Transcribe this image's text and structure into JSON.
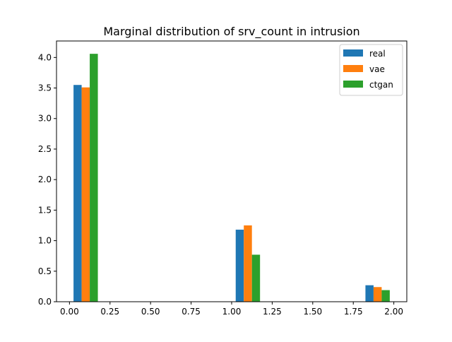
{
  "chart_data": {
    "type": "bar",
    "title": "Marginal distribution of srv_count in intrusion",
    "xlabel": "",
    "ylabel": "",
    "xlim": [
      -0.08,
      2.08
    ],
    "ylim": [
      0,
      4.27
    ],
    "x_ticks": [
      "0.00",
      "0.25",
      "0.50",
      "0.75",
      "1.00",
      "1.25",
      "1.50",
      "1.75",
      "2.00"
    ],
    "y_ticks": [
      "0.0",
      "0.5",
      "1.0",
      "1.5",
      "2.0",
      "2.5",
      "3.0",
      "3.5",
      "4.0"
    ],
    "grid": false,
    "legend_position": "top-right",
    "series": [
      {
        "name": "real",
        "color": "#1f77b4",
        "bars": [
          {
            "x_start": 0.025,
            "x_end": 0.075,
            "value": 3.55
          },
          {
            "x_start": 1.025,
            "x_end": 1.075,
            "value": 1.18
          },
          {
            "x_start": 1.825,
            "x_end": 1.875,
            "value": 0.27
          }
        ]
      },
      {
        "name": "vae",
        "color": "#ff7f0e",
        "bars": [
          {
            "x_start": 0.075,
            "x_end": 0.125,
            "value": 3.51
          },
          {
            "x_start": 1.075,
            "x_end": 1.125,
            "value": 1.25
          },
          {
            "x_start": 1.875,
            "x_end": 1.925,
            "value": 0.24
          }
        ]
      },
      {
        "name": "ctgan",
        "color": "#2ca02c",
        "bars": [
          {
            "x_start": 0.125,
            "x_end": 0.175,
            "value": 4.06
          },
          {
            "x_start": 1.125,
            "x_end": 1.175,
            "value": 0.77
          },
          {
            "x_start": 1.925,
            "x_end": 1.975,
            "value": 0.19
          }
        ]
      }
    ]
  }
}
